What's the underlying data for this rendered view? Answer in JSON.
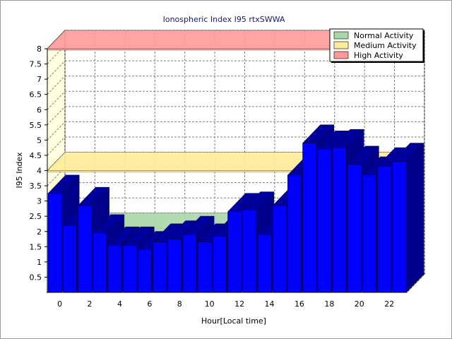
{
  "chart_data": {
    "type": "bar",
    "title": "Ionospheric Index I95 rtxSWWA",
    "xlabel": "Hour[Local time]",
    "ylabel": "I95 Index",
    "x_tick_labels": [
      "0",
      "2",
      "4",
      "6",
      "8",
      "10",
      "12",
      "14",
      "16",
      "18",
      "20",
      "22"
    ],
    "y_tick_labels": [
      "0.5",
      "1",
      "1.5",
      "2",
      "2.5",
      "3",
      "3.5",
      "4",
      "4.5",
      "5",
      "5.5",
      "6",
      "6.5",
      "7",
      "7.5",
      "8"
    ],
    "ylim": [
      0,
      8
    ],
    "categories": [
      0,
      1,
      2,
      3,
      4,
      5,
      6,
      7,
      8,
      9,
      10,
      11,
      12,
      13,
      14,
      15,
      16,
      17,
      18,
      19,
      20,
      21,
      22,
      23
    ],
    "values": [
      3.25,
      2.2,
      2.85,
      1.95,
      1.55,
      1.55,
      1.4,
      1.65,
      1.75,
      1.9,
      1.65,
      1.85,
      2.65,
      2.7,
      1.9,
      2.85,
      3.85,
      4.9,
      4.7,
      4.75,
      4.2,
      3.85,
      4.15,
      4.3
    ],
    "bar_color": "#0000ff",
    "bands": [
      {
        "name": "Normal Activity",
        "value": 2,
        "color": "#a8d8a8"
      },
      {
        "name": "Medium Activity",
        "value": 4,
        "color": "#ffeb99"
      },
      {
        "name": "High Activity",
        "value": 8,
        "color": "#ff9999"
      }
    ],
    "grid": true,
    "legend_position": "top-right"
  }
}
